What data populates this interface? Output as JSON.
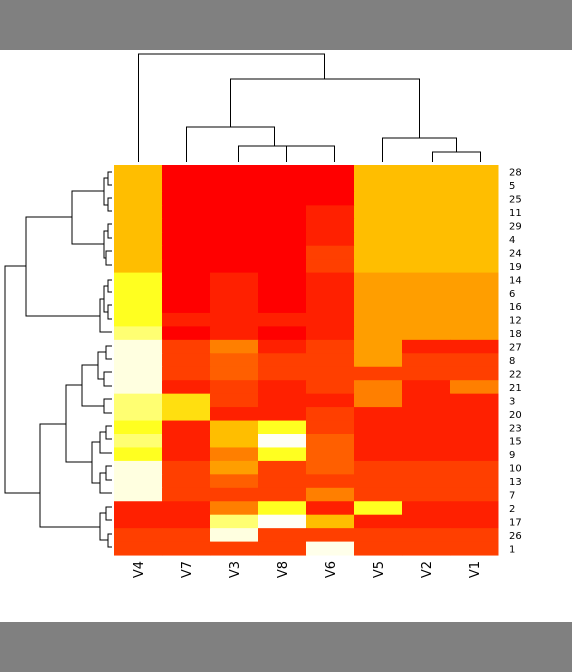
{
  "chart_data": {
    "type": "heatmap",
    "title": "",
    "xlabel": "",
    "ylabel": "",
    "columns": [
      "V4",
      "V7",
      "V3",
      "V8",
      "V6",
      "V5",
      "V2",
      "V1"
    ],
    "rows": [
      "28",
      "5",
      "25",
      "11",
      "29",
      "4",
      "24",
      "19",
      "14",
      "6",
      "16",
      "12",
      "18",
      "27",
      "8",
      "22",
      "21",
      "3",
      "20",
      "23",
      "15",
      "9",
      "10",
      "13",
      "7",
      "2",
      "17",
      "26",
      "1"
    ],
    "values": [
      [
        0.3,
        0.0,
        0.0,
        0.0,
        0.0,
        0.3,
        0.3,
        0.3
      ],
      [
        0.3,
        0.0,
        0.0,
        0.0,
        0.0,
        0.3,
        0.3,
        0.3
      ],
      [
        0.3,
        0.0,
        0.0,
        0.0,
        0.0,
        0.3,
        0.3,
        0.3
      ],
      [
        0.3,
        0.0,
        0.0,
        0.0,
        0.05,
        0.3,
        0.3,
        0.3
      ],
      [
        0.3,
        0.0,
        0.0,
        0.0,
        0.05,
        0.3,
        0.3,
        0.3
      ],
      [
        0.3,
        0.0,
        0.0,
        0.0,
        0.05,
        0.3,
        0.3,
        0.3
      ],
      [
        0.3,
        0.0,
        0.0,
        0.0,
        0.1,
        0.3,
        0.3,
        0.3
      ],
      [
        0.3,
        0.0,
        0.0,
        0.0,
        0.1,
        0.3,
        0.3,
        0.3
      ],
      [
        0.5,
        0.0,
        0.05,
        0.0,
        0.05,
        0.25,
        0.25,
        0.25
      ],
      [
        0.5,
        0.0,
        0.05,
        0.0,
        0.05,
        0.25,
        0.25,
        0.25
      ],
      [
        0.5,
        0.0,
        0.05,
        0.0,
        0.05,
        0.25,
        0.25,
        0.25
      ],
      [
        0.5,
        0.05,
        0.05,
        0.05,
        0.05,
        0.25,
        0.25,
        0.25
      ],
      [
        0.65,
        0.0,
        0.05,
        0.0,
        0.05,
        0.25,
        0.25,
        0.25
      ],
      [
        0.85,
        0.1,
        0.2,
        0.05,
        0.1,
        0.25,
        0.05,
        0.05
      ],
      [
        0.85,
        0.1,
        0.15,
        0.1,
        0.1,
        0.25,
        0.1,
        0.1
      ],
      [
        0.85,
        0.1,
        0.15,
        0.1,
        0.1,
        0.1,
        0.1,
        0.1
      ],
      [
        0.85,
        0.05,
        0.1,
        0.05,
        0.1,
        0.2,
        0.05,
        0.2
      ],
      [
        0.65,
        0.4,
        0.1,
        0.05,
        0.05,
        0.2,
        0.05,
        0.05
      ],
      [
        0.65,
        0.4,
        0.05,
        0.05,
        0.1,
        0.05,
        0.05,
        0.05
      ],
      [
        0.5,
        0.05,
        0.3,
        0.5,
        0.1,
        0.05,
        0.05,
        0.05
      ],
      [
        0.65,
        0.05,
        0.3,
        0.95,
        0.15,
        0.05,
        0.05,
        0.05
      ],
      [
        0.5,
        0.05,
        0.2,
        0.5,
        0.15,
        0.05,
        0.05,
        0.05
      ],
      [
        0.85,
        0.1,
        0.25,
        0.1,
        0.15,
        0.1,
        0.1,
        0.1
      ],
      [
        0.85,
        0.1,
        0.15,
        0.1,
        0.1,
        0.1,
        0.1,
        0.1
      ],
      [
        0.85,
        0.1,
        0.1,
        0.1,
        0.2,
        0.1,
        0.1,
        0.1
      ],
      [
        0.05,
        0.05,
        0.2,
        0.5,
        0.05,
        0.5,
        0.05,
        0.05
      ],
      [
        0.05,
        0.05,
        0.65,
        0.95,
        0.3,
        0.05,
        0.05,
        0.05
      ],
      [
        0.1,
        0.1,
        0.85,
        0.1,
        0.1,
        0.1,
        0.1,
        0.1
      ],
      [
        0.1,
        0.1,
        0.1,
        0.1,
        0.9,
        0.1,
        0.1,
        0.1
      ]
    ],
    "color_scale": [
      "#ff0000",
      "#ffff00",
      "#ffffe0"
    ],
    "legend": "none",
    "grid": false,
    "dendrograms": "top and left"
  }
}
